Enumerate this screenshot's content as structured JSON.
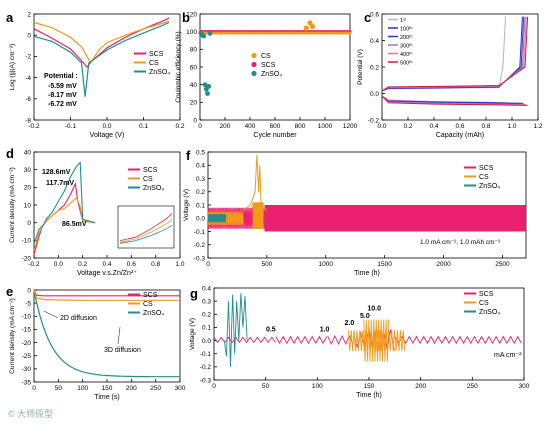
{
  "watermark": "© 大师原型",
  "colors": {
    "SCS": "#e8206e",
    "CS": "#f39a1a",
    "ZnSO4": "#1f8f8f",
    "orange_text": "#c85a00"
  },
  "chart_data": [
    {
      "panel": "a",
      "type": "line",
      "xlabel": "Voltage (V)",
      "ylabel": "Log (|j|(A) cm⁻²)",
      "xlim": [
        -0.2,
        0.2
      ],
      "ylim": [
        -8,
        2
      ],
      "xticks": [
        "-0.2",
        "-0.1",
        "0.0",
        "0.1",
        "0.2"
      ],
      "yticks": [
        "-8",
        "-6",
        "-4",
        "-2",
        "0",
        "2"
      ],
      "legend": [
        "SCS",
        "CS",
        "ZnSO₄"
      ],
      "legend_pos": "right",
      "potential_title": "Potential :",
      "potential_values": [
        "-5.59 mV",
        "-8.17 mV",
        "-6.72 mV"
      ],
      "series": [
        {
          "name": "SCS",
          "x": [
            -0.2,
            -0.15,
            -0.1,
            -0.07,
            -0.055,
            -0.04,
            0.0,
            0.05,
            0.1,
            0.15,
            0.17
          ],
          "y": [
            0.6,
            -0.3,
            -1.3,
            -2.4,
            -3.0,
            -2.4,
            -1.2,
            -0.2,
            0.6,
            1.3,
            1.6
          ]
        },
        {
          "name": "CS",
          "x": [
            -0.2,
            -0.15,
            -0.1,
            -0.07,
            -0.045,
            -0.02,
            0.0,
            0.05,
            0.1,
            0.15,
            0.17
          ],
          "y": [
            1.2,
            0.7,
            -0.2,
            -1.1,
            -2.6,
            -1.3,
            -0.7,
            0.0,
            0.6,
            1.1,
            1.3
          ]
        },
        {
          "name": "ZnSO4",
          "x": [
            -0.2,
            -0.15,
            -0.1,
            -0.07,
            -0.06,
            -0.05,
            0.0,
            0.05,
            0.1,
            0.15,
            0.17
          ],
          "y": [
            -0.1,
            -0.6,
            -1.6,
            -2.6,
            -5.8,
            -2.6,
            -1.4,
            -0.5,
            0.2,
            0.9,
            1.2
          ]
        }
      ]
    },
    {
      "panel": "b",
      "type": "scatter",
      "xlabel": "Cycle number",
      "ylabel": "Coulombic efficiency (%)",
      "xlim": [
        0,
        1200
      ],
      "ylim": [
        0,
        120
      ],
      "xticks": [
        "0",
        "200",
        "400",
        "600",
        "800",
        "1000",
        "1200"
      ],
      "yticks": [
        "0",
        "20",
        "40",
        "60",
        "80",
        "100",
        "120"
      ],
      "legend": [
        "CS",
        "SCS",
        "ZnSO₄"
      ],
      "legend_pos": "center",
      "series": [
        {
          "name": "CS",
          "x": [
            0,
            100,
            200,
            300,
            400,
            500,
            600,
            700,
            800,
            850,
            880,
            900,
            1000,
            1100,
            1200
          ],
          "y": [
            99,
            99,
            99,
            99,
            99,
            99,
            99,
            99,
            99,
            104,
            110,
            106,
            99,
            99,
            99
          ]
        },
        {
          "name": "SCS",
          "x": [
            0,
            100,
            200,
            300,
            400,
            500,
            600,
            700,
            800,
            900,
            1000,
            1100,
            1200
          ],
          "y": [
            99.5,
            99.5,
            99.5,
            99.5,
            99.5,
            99.5,
            99.5,
            99.5,
            99.5,
            99.5,
            99.5,
            99.5,
            99.5
          ]
        },
        {
          "name": "ZnSO4",
          "x": [
            10,
            20,
            30,
            40,
            50,
            60,
            70,
            80
          ],
          "y": [
            98,
            96,
            95,
            40,
            35,
            30,
            38,
            98
          ]
        }
      ]
    },
    {
      "panel": "c",
      "type": "line",
      "xlabel": "Capacity (mAh)",
      "ylabel": "Potential (V)",
      "xlim": [
        0,
        1.2
      ],
      "ylim": [
        -0.2,
        0.6
      ],
      "xticks": [
        "0.0",
        "0.2",
        "0.4",
        "0.6",
        "0.8",
        "1.0",
        "1.2"
      ],
      "yticks": [
        "-0.2",
        "0.0",
        "0.2",
        "0.4",
        "0.6"
      ],
      "legend": [
        "1ˢᵗ",
        "100ᵗʰ",
        "200ᵗʰ",
        "300ᵗʰ",
        "400ᵗʰ",
        "500ᵗʰ"
      ],
      "legend_pos": "top-left"
    },
    {
      "panel": "d",
      "type": "line",
      "xlabel": "Voltage v.s.Zn/Zn²⁺",
      "ylabel": "Current density (mA cm⁻²)",
      "xlim": [
        -0.2,
        1.0
      ],
      "ylim": [
        -20,
        40
      ],
      "xticks": [
        "-0.2",
        "0.0",
        "0.2",
        "0.4",
        "0.6",
        "0.8",
        "1.0"
      ],
      "yticks": [
        "-20",
        "-10",
        "0",
        "10",
        "20",
        "30",
        "40"
      ],
      "legend": [
        "SCS",
        "CS",
        "ZnSO₄"
      ],
      "legend_pos": "right",
      "annotations": [
        "128.6mV",
        "117.7mV",
        "86.5mV"
      ],
      "series": [
        {
          "name": "SCS",
          "x": [
            -0.2,
            -0.16,
            -0.13,
            -0.1,
            -0.05,
            0.0,
            0.05,
            0.1,
            0.14,
            0.16,
            0.2,
            0.3
          ],
          "y": [
            -18,
            -8,
            -2,
            1,
            4,
            7,
            10,
            16,
            22,
            12,
            1,
            0
          ]
        },
        {
          "name": "CS",
          "x": [
            -0.2,
            -0.16,
            -0.12,
            -0.1,
            -0.05,
            0.0,
            0.05,
            0.1,
            0.15,
            0.18,
            0.2,
            0.3
          ],
          "y": [
            -16,
            -6,
            -1,
            1,
            4,
            7,
            8,
            11,
            14,
            9,
            1,
            0
          ]
        },
        {
          "name": "ZnSO4",
          "x": [
            -0.2,
            -0.16,
            -0.12,
            -0.1,
            -0.05,
            0.0,
            0.05,
            0.1,
            0.15,
            0.18,
            0.2,
            0.3
          ],
          "y": [
            -12,
            -4,
            -1,
            2,
            6,
            12,
            18,
            26,
            32,
            34,
            2,
            0
          ]
        }
      ]
    },
    {
      "panel": "e",
      "type": "line",
      "xlabel": "Time (s)",
      "ylabel": "Current density (mA cm⁻²)",
      "xlim": [
        0,
        300
      ],
      "ylim": [
        -35,
        0
      ],
      "xticks": [
        "0",
        "50",
        "100",
        "150",
        "200",
        "250",
        "300"
      ],
      "yticks": [
        "-35",
        "-30",
        "-25",
        "-20",
        "-15",
        "-10",
        "-5",
        "0"
      ],
      "legend": [
        "SCS",
        "CS",
        "ZnSO₄"
      ],
      "legend_pos": "top-right",
      "annotations": [
        "2D diffusion",
        "3D diffusion"
      ],
      "series": [
        {
          "name": "SCS",
          "x": [
            0,
            5,
            20,
            50,
            100,
            200,
            300
          ],
          "y": [
            0,
            -2,
            -2.2,
            -2.2,
            -2.2,
            -2.2,
            -2.2
          ]
        },
        {
          "name": "CS",
          "x": [
            0,
            5,
            20,
            50,
            100,
            200,
            300
          ],
          "y": [
            0,
            -3,
            -3.6,
            -3.8,
            -3.9,
            -3.9,
            -3.9
          ]
        },
        {
          "name": "ZnSO4",
          "x": [
            0,
            5,
            15,
            30,
            50,
            75,
            100,
            150,
            200,
            300
          ],
          "y": [
            0,
            -12,
            -18,
            -23,
            -27,
            -30,
            -31.5,
            -32.5,
            -32.8,
            -33
          ]
        }
      ]
    },
    {
      "panel": "f",
      "type": "line",
      "xlabel": "Time (h)",
      "ylabel": "Voltage (V)",
      "xlim": [
        0,
        2700
      ],
      "ylim": [
        -0.3,
        0.5
      ],
      "xticks": [
        "0",
        "500",
        "1000",
        "1500",
        "2000",
        "2500"
      ],
      "yticks": [
        "-0.3",
        "-0.2",
        "-0.1",
        "0.0",
        "0.1",
        "0.2",
        "0.3",
        "0.4",
        "0.5"
      ],
      "legend": [
        "SCS",
        "CS",
        "ZnSO₄"
      ],
      "legend_pos": "top-right",
      "condition": "1.0 mA cm⁻², 1.0 mAh cm⁻²",
      "series": [
        {
          "name": "SCS",
          "x": [
            0,
            2700
          ],
          "y_amplitude": 0.1
        },
        {
          "name": "CS",
          "x": [
            0,
            300,
            400,
            420,
            440,
            500
          ],
          "y": [
            0.05,
            0.08,
            0.3,
            0.45,
            0.1,
            0.05
          ]
        },
        {
          "name": "ZnSO4",
          "x": [
            0,
            150
          ],
          "y_amplitude": 0.03
        }
      ]
    },
    {
      "panel": "g",
      "type": "line",
      "xlabel": "Time (h)",
      "ylabel": "Voltage (V)",
      "xlim": [
        0,
        300
      ],
      "ylim": [
        -0.3,
        0.4
      ],
      "xticks": [
        "0",
        "50",
        "100",
        "150",
        "200",
        "250",
        "300"
      ],
      "yticks": [
        "-0.3",
        "-0.2",
        "-0.1",
        "0.0",
        "0.1",
        "0.2",
        "0.3",
        "0.4"
      ],
      "legend": [
        "SCS",
        "CS",
        "ZnSO₄"
      ],
      "legend_pos": "top-right",
      "rate_labels": [
        "0.5",
        "1.0",
        "2.0",
        "5.0",
        "10.0"
      ],
      "unit_label": "mA cm⁻²"
    }
  ]
}
